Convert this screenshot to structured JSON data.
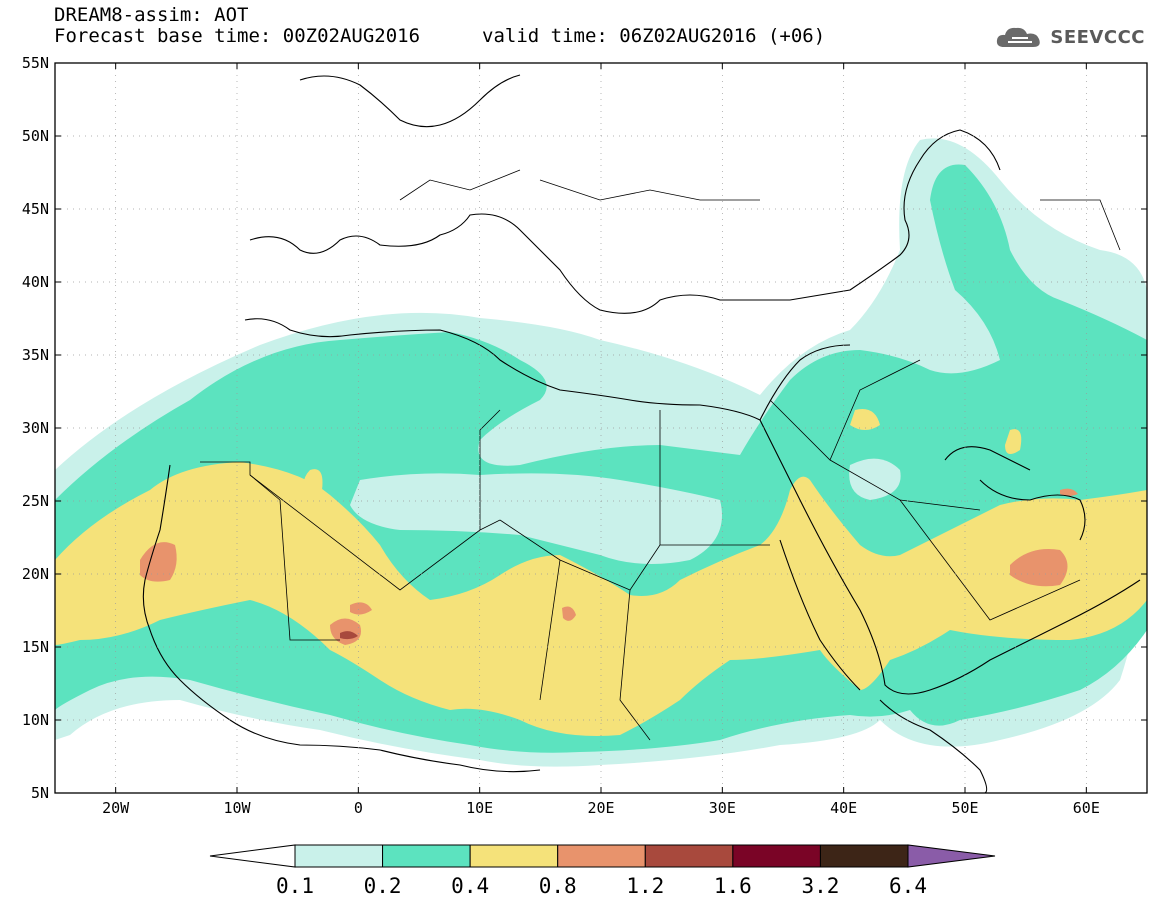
{
  "header": {
    "title": "DREAM8-assim: AOT",
    "base_time": "Forecast base time: 00Z02AUG2016",
    "valid_time": "valid time: 06Z02AUG2016 (+06)"
  },
  "logo": {
    "text": "SEEVCCC",
    "icon": "cloud-icon"
  },
  "map": {
    "lat_labels": [
      "55N",
      "50N",
      "45N",
      "40N",
      "35N",
      "30N",
      "25N",
      "20N",
      "15N",
      "10N",
      "5N"
    ],
    "lon_labels": [
      "20W",
      "10W",
      "0",
      "10E",
      "20E",
      "30E",
      "40E",
      "50E",
      "60E"
    ],
    "extent": {
      "lon": [
        -25,
        65
      ],
      "lat": [
        5,
        55
      ]
    },
    "field": "AOT"
  },
  "legend": {
    "labels": [
      "0.1",
      "0.2",
      "0.4",
      "0.8",
      "1.2",
      "1.6",
      "3.2",
      "6.4"
    ],
    "colors": [
      "#c9f1ea",
      "#5ce3bf",
      "#f5e27a",
      "#e8936c",
      "#a8493d",
      "#7a0426",
      "#3d2517",
      "#8a5ca8"
    ]
  },
  "colors": {
    "c1": "#c9f1ea",
    "c2": "#5ce3bf",
    "c3": "#f5e27a",
    "c4": "#e8936c",
    "c5": "#a8493d"
  }
}
